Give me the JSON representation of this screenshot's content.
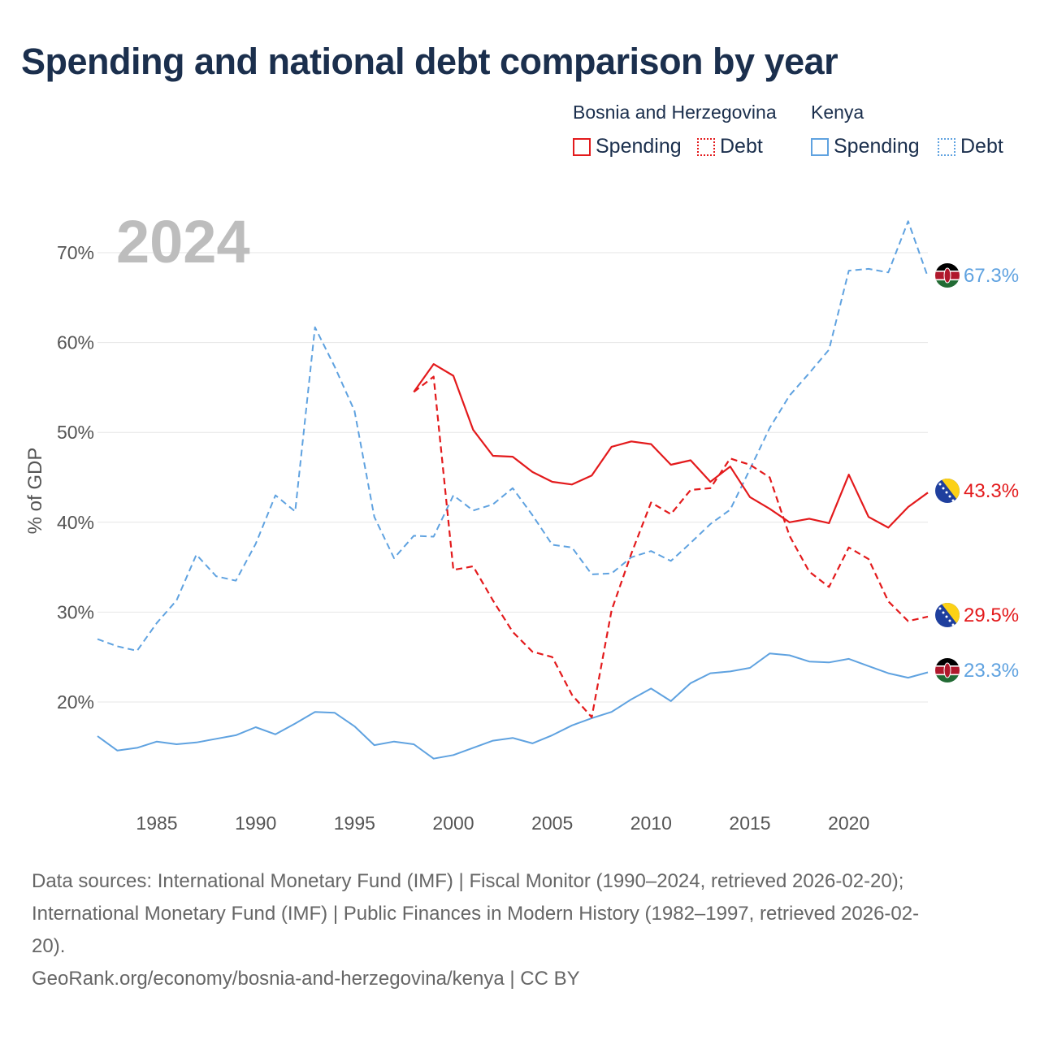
{
  "title": "Spending and national debt comparison by year",
  "legend": {
    "country_a": "Bosnia and Herzegovina",
    "country_b": "Kenya",
    "spending_label": "Spending",
    "debt_label": "Debt"
  },
  "colors": {
    "bih": "#e31a1c",
    "kenya": "#5fa2e0",
    "grid": "#e6e6e6",
    "axis_text": "#555555",
    "year_watermark": "#bdbdbd"
  },
  "year_watermark": "2024",
  "chart_data": {
    "type": "line",
    "title": "Spending and national debt comparison by year",
    "xlabel": "",
    "ylabel": "% of GDP",
    "xlim": [
      1982,
      2024
    ],
    "ylim": [
      12.5,
      75
    ],
    "x_ticks": [
      1985,
      1990,
      1995,
      2000,
      2005,
      2010,
      2015,
      2020
    ],
    "y_ticks": [
      20,
      30,
      40,
      50,
      60,
      70
    ],
    "y_tick_labels": [
      "20%",
      "30%",
      "40%",
      "50%",
      "60%",
      "70%"
    ],
    "series": [
      {
        "name": "Kenya Spending",
        "country": "Kenya",
        "style": "solid",
        "end_label": "23.3%",
        "x": [
          1982,
          1983,
          1984,
          1985,
          1986,
          1987,
          1988,
          1989,
          1990,
          1991,
          1992,
          1993,
          1994,
          1995,
          1996,
          1997,
          1998,
          1999,
          2000,
          2001,
          2002,
          2003,
          2004,
          2005,
          2006,
          2007,
          2008,
          2009,
          2010,
          2011,
          2012,
          2013,
          2014,
          2015,
          2016,
          2017,
          2018,
          2019,
          2020,
          2021,
          2022,
          2023,
          2024
        ],
        "values": [
          16.2,
          14.6,
          14.9,
          15.6,
          15.3,
          15.5,
          15.9,
          16.3,
          17.2,
          16.4,
          17.6,
          18.9,
          18.8,
          17.3,
          15.2,
          15.6,
          15.3,
          13.7,
          14.1,
          14.9,
          15.7,
          16.0,
          15.4,
          16.3,
          17.4,
          18.2,
          18.9,
          20.3,
          21.5,
          20.1,
          22.1,
          23.2,
          23.4,
          23.8,
          25.4,
          25.2,
          24.5,
          24.4,
          24.8,
          24.0,
          23.2,
          22.7,
          23.3
        ]
      },
      {
        "name": "Kenya Debt",
        "country": "Kenya",
        "style": "dashed",
        "end_label": "67.3%",
        "x": [
          1982,
          1983,
          1984,
          1985,
          1986,
          1987,
          1988,
          1989,
          1990,
          1991,
          1992,
          1993,
          1994,
          1995,
          1996,
          1997,
          1998,
          1999,
          2000,
          2001,
          2002,
          2003,
          2004,
          2005,
          2006,
          2007,
          2008,
          2009,
          2010,
          2011,
          2012,
          2013,
          2014,
          2015,
          2016,
          2017,
          2018,
          2019,
          2020,
          2021,
          2022,
          2023,
          2024
        ],
        "values": [
          27.0,
          26.2,
          25.7,
          28.8,
          31.3,
          36.4,
          34.0,
          33.5,
          37.6,
          43.0,
          41.2,
          61.7,
          57.3,
          52.4,
          40.6,
          36.0,
          38.5,
          38.4,
          43.0,
          41.3,
          42.0,
          43.8,
          40.8,
          37.5,
          37.2,
          34.2,
          34.3,
          36.1,
          36.8,
          35.7,
          37.7,
          39.8,
          41.4,
          45.9,
          50.5,
          54.1,
          56.6,
          59.2,
          68.0,
          68.2,
          67.8,
          73.5,
          67.3
        ]
      },
      {
        "name": "Bosnia and Herzegovina Spending",
        "country": "Bosnia and Herzegovina",
        "style": "solid",
        "end_label": "43.3%",
        "x": [
          1998,
          1999,
          2000,
          2001,
          2002,
          2003,
          2004,
          2005,
          2006,
          2007,
          2008,
          2009,
          2010,
          2011,
          2012,
          2013,
          2014,
          2015,
          2016,
          2017,
          2018,
          2019,
          2020,
          2021,
          2022,
          2023,
          2024
        ],
        "values": [
          54.5,
          57.6,
          56.3,
          50.3,
          47.4,
          47.3,
          45.6,
          44.5,
          44.2,
          45.2,
          48.4,
          49.0,
          48.7,
          46.4,
          46.9,
          44.5,
          46.2,
          42.8,
          41.5,
          40.0,
          40.4,
          39.9,
          45.3,
          40.6,
          39.4,
          41.7,
          43.3
        ]
      },
      {
        "name": "Bosnia and Herzegovina Debt",
        "country": "Bosnia and Herzegovina",
        "style": "dashed",
        "end_label": "29.5%",
        "x": [
          1998,
          1999,
          2000,
          2001,
          2002,
          2003,
          2004,
          2005,
          2006,
          2007,
          2008,
          2009,
          2010,
          2011,
          2012,
          2013,
          2014,
          2015,
          2016,
          2017,
          2018,
          2019,
          2020,
          2021,
          2022,
          2023,
          2024
        ],
        "values": [
          54.5,
          56.2,
          34.7,
          35.1,
          31.3,
          27.8,
          25.6,
          25.0,
          20.8,
          18.3,
          30.2,
          36.5,
          42.2,
          40.9,
          43.6,
          43.8,
          47.1,
          46.4,
          45.0,
          38.5,
          34.5,
          32.8,
          37.2,
          35.9,
          31.2,
          29.0,
          29.5
        ]
      }
    ]
  },
  "sources": {
    "line1": "Data sources: International Monetary Fund (IMF) | Fiscal Monitor (1990–2024, retrieved 2026-02-20);",
    "line2": "International Monetary Fund (IMF) | Public Finances in Modern History (1982–1997, retrieved 2026-02-",
    "line3": "20).",
    "credit": "GeoRank.org/economy/bosnia-and-herzegovina/kenya | CC BY"
  }
}
